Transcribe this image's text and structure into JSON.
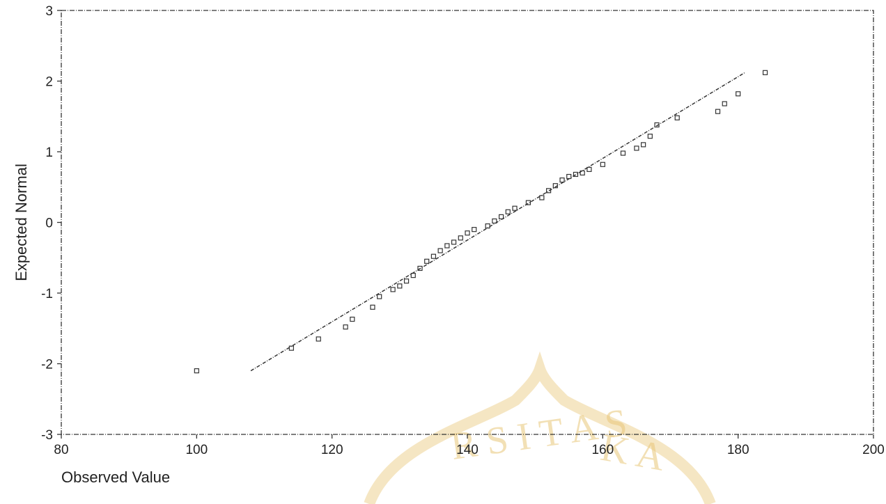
{
  "chart_data": {
    "type": "scatter",
    "title": "",
    "xlabel": "Observed Value",
    "ylabel": "Expected Normal",
    "xlim": [
      80,
      200
    ],
    "ylim": [
      -3,
      3
    ],
    "x_ticks": [
      80,
      100,
      120,
      140,
      160,
      180,
      200
    ],
    "y_ticks": [
      -3,
      -2,
      -1,
      0,
      1,
      2,
      3
    ],
    "grid": false,
    "points": [
      {
        "x": 100,
        "y": -2.1
      },
      {
        "x": 114,
        "y": -1.78
      },
      {
        "x": 118,
        "y": -1.65
      },
      {
        "x": 122,
        "y": -1.48
      },
      {
        "x": 123,
        "y": -1.37
      },
      {
        "x": 126,
        "y": -1.2
      },
      {
        "x": 127,
        "y": -1.05
      },
      {
        "x": 129,
        "y": -0.95
      },
      {
        "x": 130,
        "y": -0.9
      },
      {
        "x": 131,
        "y": -0.83
      },
      {
        "x": 132,
        "y": -0.75
      },
      {
        "x": 133,
        "y": -0.65
      },
      {
        "x": 134,
        "y": -0.55
      },
      {
        "x": 135,
        "y": -0.48
      },
      {
        "x": 136,
        "y": -0.4
      },
      {
        "x": 137,
        "y": -0.33
      },
      {
        "x": 138,
        "y": -0.28
      },
      {
        "x": 139,
        "y": -0.22
      },
      {
        "x": 140,
        "y": -0.15
      },
      {
        "x": 141,
        "y": -0.1
      },
      {
        "x": 143,
        "y": -0.05
      },
      {
        "x": 144,
        "y": 0.02
      },
      {
        "x": 145,
        "y": 0.08
      },
      {
        "x": 146,
        "y": 0.15
      },
      {
        "x": 147,
        "y": 0.2
      },
      {
        "x": 149,
        "y": 0.28
      },
      {
        "x": 151,
        "y": 0.35
      },
      {
        "x": 152,
        "y": 0.45
      },
      {
        "x": 153,
        "y": 0.52
      },
      {
        "x": 154,
        "y": 0.6
      },
      {
        "x": 155,
        "y": 0.65
      },
      {
        "x": 156,
        "y": 0.68
      },
      {
        "x": 157,
        "y": 0.7
      },
      {
        "x": 158,
        "y": 0.75
      },
      {
        "x": 160,
        "y": 0.82
      },
      {
        "x": 163,
        "y": 0.98
      },
      {
        "x": 165,
        "y": 1.05
      },
      {
        "x": 166,
        "y": 1.1
      },
      {
        "x": 167,
        "y": 1.22
      },
      {
        "x": 168,
        "y": 1.38
      },
      {
        "x": 171,
        "y": 1.48
      },
      {
        "x": 177,
        "y": 1.57
      },
      {
        "x": 178,
        "y": 1.68
      },
      {
        "x": 180,
        "y": 1.82
      },
      {
        "x": 184,
        "y": 2.12
      }
    ],
    "reference_line": {
      "x": [
        108,
        181
      ],
      "y": [
        -2.1,
        2.12
      ]
    }
  },
  "watermark": {
    "text_left": "R S I T A S",
    "text_right": "K A",
    "color": "#e9c77a"
  }
}
